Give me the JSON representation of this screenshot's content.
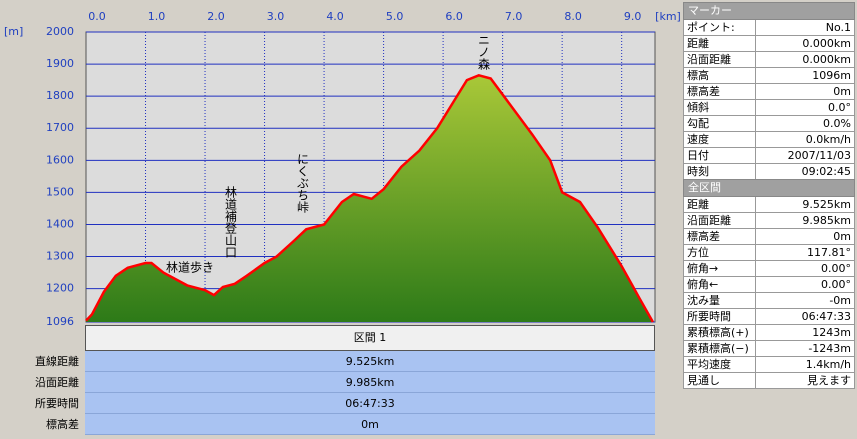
{
  "chart_data": {
    "type": "area",
    "x_label": "[km]",
    "y_label": "[m]",
    "x": [
      0,
      0.1,
      0.3,
      0.5,
      0.7,
      1.0,
      1.1,
      1.3,
      1.5,
      1.7,
      2.0,
      2.15,
      2.3,
      2.5,
      2.7,
      3.0,
      3.2,
      3.5,
      3.7,
      4.0,
      4.3,
      4.5,
      4.8,
      5.0,
      5.3,
      5.6,
      5.9,
      6.2,
      6.4,
      6.6,
      6.8,
      7.1,
      7.5,
      7.8,
      8.0,
      8.3,
      8.6,
      9.0,
      9.3,
      9.525
    ],
    "values": [
      1100,
      1120,
      1190,
      1240,
      1265,
      1280,
      1280,
      1250,
      1230,
      1210,
      1195,
      1180,
      1205,
      1215,
      1240,
      1280,
      1300,
      1350,
      1385,
      1400,
      1470,
      1495,
      1480,
      1510,
      1580,
      1630,
      1700,
      1790,
      1850,
      1865,
      1855,
      1780,
      1680,
      1600,
      1500,
      1470,
      1390,
      1270,
      1170,
      1096
    ],
    "color": "#ff0000",
    "xlim": [
      0,
      9.56
    ],
    "xticks": [
      {
        "value": 0,
        "label": "0.0"
      },
      {
        "value": 1,
        "label": "1.0"
      },
      {
        "value": 2,
        "label": "2.0"
      },
      {
        "value": 3,
        "label": "3.0"
      },
      {
        "value": 4,
        "label": "4.0"
      },
      {
        "value": 5,
        "label": "5.0"
      },
      {
        "value": 6,
        "label": "6.0"
      },
      {
        "value": 7,
        "label": "7.0"
      },
      {
        "value": 8,
        "label": "8.0"
      },
      {
        "value": 9,
        "label": "9.0"
      }
    ],
    "ylim": [
      1096,
      2000
    ],
    "yticks": [
      1096,
      1200,
      1300,
      1400,
      1500,
      1600,
      1700,
      1800,
      1900,
      2000
    ],
    "grid": true,
    "annotations": [
      "林道歩き",
      "林道補登山口",
      "にくぶち峠",
      "ニノ森"
    ]
  },
  "section_table": {
    "title": "区間 1",
    "rows": [
      [
        "直線距離",
        "9.525km"
      ],
      [
        "沿面距離",
        "9.985km"
      ],
      [
        "所要時間",
        "06:47:33"
      ],
      [
        "標高差",
        "0m"
      ]
    ]
  },
  "marker_panel": {
    "title": "マーカー",
    "rows": [
      [
        "ポイント:",
        "No.1"
      ],
      [
        "距離",
        "0.000km"
      ],
      [
        "沿面距離",
        "0.000km"
      ],
      [
        "標高",
        "1096m"
      ],
      [
        "標高差",
        "0m"
      ],
      [
        "傾斜",
        "0.0°"
      ],
      [
        "勾配",
        "0.0%"
      ],
      [
        "速度",
        "0.0km/h"
      ],
      [
        "日付",
        "2007/11/03"
      ],
      [
        "時刻",
        "09:02:45"
      ]
    ]
  },
  "total_panel": {
    "title": "全区間",
    "rows": [
      [
        "距離",
        "9.525km"
      ],
      [
        "沿面距離",
        "9.985km"
      ],
      [
        "標高差",
        "0m"
      ],
      [
        "方位",
        "117.81°"
      ],
      [
        "俯角→",
        "0.00°"
      ],
      [
        "俯角←",
        "0.00°"
      ],
      [
        "沈み量",
        "-0m"
      ],
      [
        "所要時間",
        "06:47:33"
      ],
      [
        "累積標高(+)",
        "1243m"
      ],
      [
        "累積標高(−)",
        "-1243m"
      ],
      [
        "平均速度",
        "1.4km/h"
      ],
      [
        "見通し",
        "見えます"
      ]
    ]
  }
}
